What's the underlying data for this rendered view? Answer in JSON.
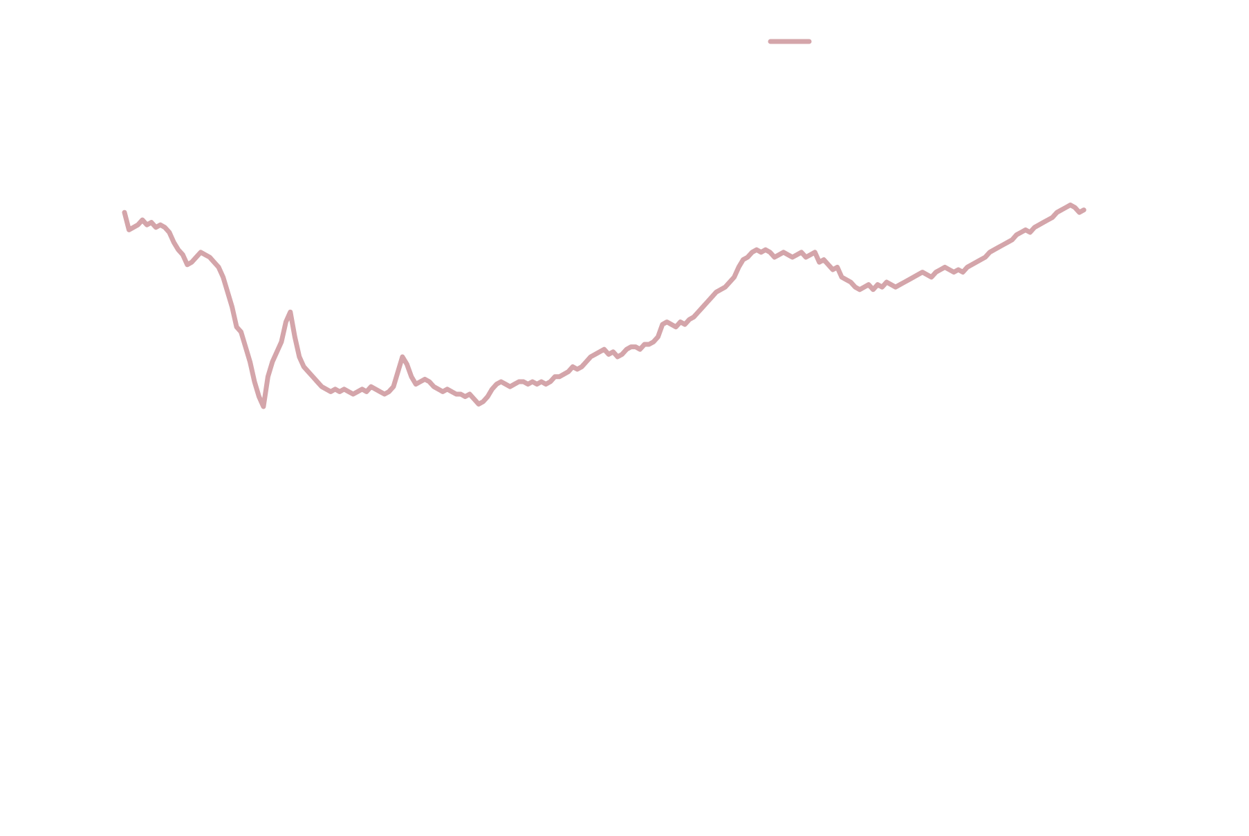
{
  "chart_data": {
    "type": "line",
    "title": "",
    "xlabel": "",
    "ylabel": "",
    "grid": false,
    "legend": "top-right",
    "series": [
      {
        "color": "#d4a5aa",
        "values": [
          0.78,
          0.71,
          0.72,
          0.73,
          0.75,
          0.73,
          0.74,
          0.72,
          0.73,
          0.72,
          0.7,
          0.66,
          0.63,
          0.61,
          0.57,
          0.58,
          0.6,
          0.62,
          0.61,
          0.6,
          0.58,
          0.56,
          0.52,
          0.46,
          0.4,
          0.32,
          0.3,
          0.24,
          0.18,
          0.1,
          0.04,
          0.0,
          0.12,
          0.18,
          0.22,
          0.26,
          0.34,
          0.38,
          0.28,
          0.2,
          0.16,
          0.14,
          0.12,
          0.1,
          0.08,
          0.07,
          0.06,
          0.07,
          0.06,
          0.07,
          0.06,
          0.05,
          0.06,
          0.07,
          0.06,
          0.08,
          0.07,
          0.06,
          0.05,
          0.06,
          0.08,
          0.14,
          0.2,
          0.17,
          0.12,
          0.09,
          0.1,
          0.11,
          0.1,
          0.08,
          0.07,
          0.06,
          0.07,
          0.06,
          0.05,
          0.05,
          0.04,
          0.05,
          0.03,
          0.01,
          0.02,
          0.04,
          0.07,
          0.09,
          0.1,
          0.09,
          0.08,
          0.09,
          0.1,
          0.1,
          0.09,
          0.1,
          0.09,
          0.1,
          0.09,
          0.1,
          0.12,
          0.12,
          0.13,
          0.14,
          0.16,
          0.15,
          0.16,
          0.18,
          0.2,
          0.21,
          0.22,
          0.23,
          0.21,
          0.22,
          0.2,
          0.21,
          0.23,
          0.24,
          0.24,
          0.23,
          0.25,
          0.25,
          0.26,
          0.28,
          0.33,
          0.34,
          0.33,
          0.32,
          0.34,
          0.33,
          0.35,
          0.36,
          0.38,
          0.4,
          0.42,
          0.44,
          0.46,
          0.47,
          0.48,
          0.5,
          0.52,
          0.56,
          0.59,
          0.6,
          0.62,
          0.63,
          0.62,
          0.63,
          0.62,
          0.6,
          0.61,
          0.62,
          0.61,
          0.6,
          0.61,
          0.62,
          0.6,
          0.61,
          0.62,
          0.58,
          0.59,
          0.57,
          0.55,
          0.56,
          0.52,
          0.51,
          0.5,
          0.48,
          0.47,
          0.48,
          0.49,
          0.47,
          0.49,
          0.48,
          0.5,
          0.49,
          0.48,
          0.49,
          0.5,
          0.51,
          0.52,
          0.53,
          0.54,
          0.53,
          0.52,
          0.54,
          0.55,
          0.56,
          0.55,
          0.54,
          0.55,
          0.54,
          0.56,
          0.57,
          0.58,
          0.59,
          0.6,
          0.62,
          0.63,
          0.64,
          0.65,
          0.66,
          0.67,
          0.69,
          0.7,
          0.71,
          0.7,
          0.72,
          0.73,
          0.74,
          0.75,
          0.76,
          0.78,
          0.79,
          0.8,
          0.81,
          0.8,
          0.78,
          0.79
        ]
      }
    ],
    "xlim": [
      0,
      224
    ],
    "ylim": [
      0,
      1
    ]
  }
}
